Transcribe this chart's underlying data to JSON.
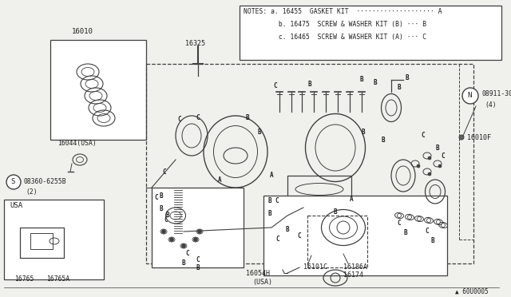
{
  "bg_color": "#f0f0ec",
  "line_color": "#404040",
  "text_color": "#202020",
  "white": "#ffffff",
  "notes_lines": [
    "NOTES: a. 16455  GASKET KIT  ···················· A",
    "         b. 16475  SCREW & WASHER KIT (B) ··· B",
    "         c. 16465  SCREW & WASHER KIT (A) ··· C"
  ],
  "figsize": [
    6.4,
    3.72
  ],
  "dpi": 100
}
